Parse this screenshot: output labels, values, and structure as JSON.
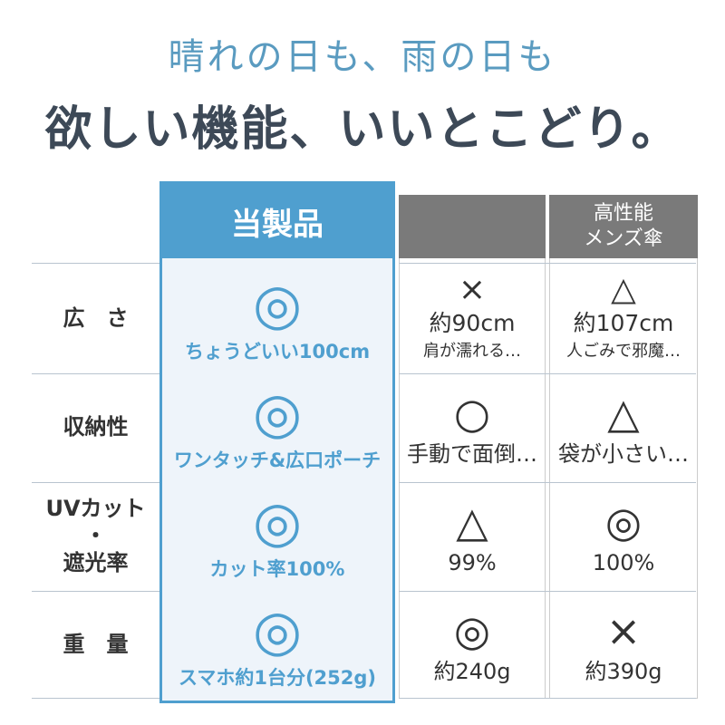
{
  "headline": {
    "line1": "晴れの日も、雨の日も",
    "line2": "欲しい機能、いいとこどり。"
  },
  "table": {
    "headers": [
      "当製品",
      "",
      "高性能\nメンズ傘"
    ],
    "rows": [
      {
        "label": "広　さ",
        "product": {
          "symbol": "◎",
          "text": "ちょうどいい100cm"
        },
        "others": [
          {
            "lines": [
              "×",
              "約90cm",
              "肩が濡れる…"
            ]
          },
          {
            "lines": [
              "△",
              "約107cm",
              "人ごみで邪魔…"
            ]
          }
        ]
      },
      {
        "label": "収納性",
        "product": {
          "symbol": "◎",
          "text": "ワンタッチ&広口ポーチ"
        },
        "others": [
          {
            "lines": [
              "○",
              "手動で面倒…"
            ]
          },
          {
            "lines": [
              "△",
              "袋が小さい…"
            ]
          }
        ]
      },
      {
        "label": "UVカット\n・\n遮光率",
        "product": {
          "symbol": "◎",
          "text": "カット率100%"
        },
        "others": [
          {
            "lines": [
              "△",
              "99%"
            ]
          },
          {
            "lines": [
              "◎",
              "100%"
            ]
          }
        ]
      },
      {
        "label": "重　量",
        "product": {
          "symbol": "◎",
          "text": "スマホ約1台分(252g)"
        },
        "others": [
          {
            "lines": [
              "◎",
              "約240g"
            ]
          },
          {
            "lines": [
              "×",
              "約390g"
            ]
          }
        ]
      }
    ]
  }
}
